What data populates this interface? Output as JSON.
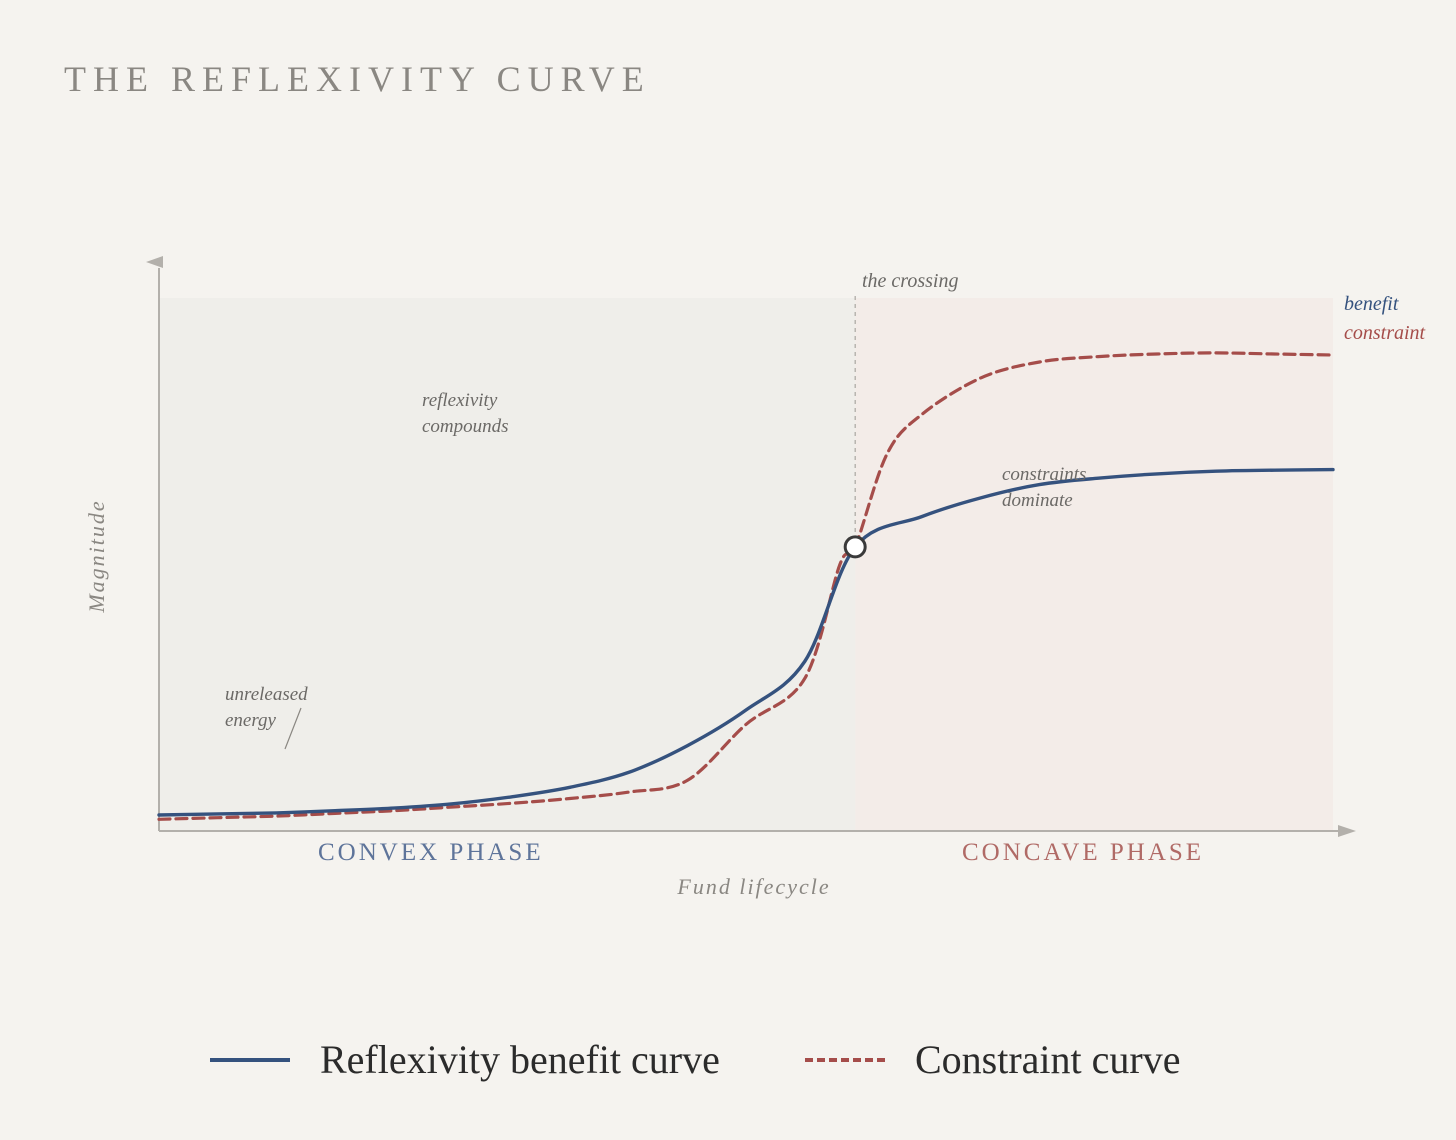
{
  "title": "THE REFLEXIVITY CURVE",
  "colors": {
    "benefit": "#35527e",
    "constraint": "#a54d4a",
    "axis": "#b3b0ab",
    "convex_bg": "#efeeea",
    "concave_bg": "#f3ece8",
    "annotation": "#6b6966",
    "muted": "#8a8782"
  },
  "chart_data": {
    "type": "line",
    "title": "THE REFLEXIVITY CURVE",
    "xlabel": "Fund lifecycle",
    "ylabel": "Magnitude",
    "xlim": [
      0,
      1
    ],
    "ylim": [
      0,
      1
    ],
    "grid": false,
    "series": [
      {
        "name": "benefit",
        "style": "solid",
        "x": [
          0,
          0.05,
          0.1,
          0.15,
          0.2,
          0.25,
          0.3,
          0.35,
          0.4,
          0.45,
          0.5,
          0.55,
          0.593,
          0.65,
          0.7,
          0.75,
          0.8,
          0.85,
          0.9,
          0.95,
          1.0
        ],
        "y": [
          0.03,
          0.032,
          0.034,
          0.038,
          0.043,
          0.051,
          0.064,
          0.082,
          0.11,
          0.16,
          0.227,
          0.318,
          0.533,
          0.59,
          0.625,
          0.65,
          0.662,
          0.67,
          0.675,
          0.677,
          0.678
        ]
      },
      {
        "name": "constraint",
        "style": "dashed",
        "x": [
          0,
          0.05,
          0.1,
          0.15,
          0.2,
          0.25,
          0.3,
          0.35,
          0.4,
          0.45,
          0.5,
          0.55,
          0.58,
          0.593,
          0.62,
          0.65,
          0.7,
          0.75,
          0.8,
          0.85,
          0.9,
          0.95,
          1.0
        ],
        "y": [
          0.022,
          0.025,
          0.028,
          0.033,
          0.038,
          0.045,
          0.052,
          0.061,
          0.073,
          0.095,
          0.2,
          0.286,
          0.5,
          0.533,
          0.707,
          0.782,
          0.85,
          0.88,
          0.89,
          0.895,
          0.897,
          0.895,
          0.893
        ]
      }
    ],
    "crossing": {
      "x": 0.593,
      "y": 0.533,
      "label": "the crossing"
    },
    "phases": [
      {
        "label": "CONVEX PHASE",
        "from": 0,
        "to": 0.593
      },
      {
        "label": "CONCAVE PHASE",
        "from": 0.593,
        "to": 1
      }
    ],
    "annotations": [
      {
        "text": [
          "unreleased",
          "energy"
        ]
      },
      {
        "text": [
          "reflexivity",
          "compounds"
        ]
      },
      {
        "text": [
          "constraints",
          "dominate"
        ]
      }
    ],
    "end_labels": {
      "benefit": "benefit",
      "constraint": "constraint"
    },
    "legend": {
      "placement": "bottom",
      "entries": [
        {
          "label": "Reflexivity benefit curve",
          "style": "solid"
        },
        {
          "label": "Constraint curve",
          "style": "dashed"
        }
      ]
    }
  }
}
